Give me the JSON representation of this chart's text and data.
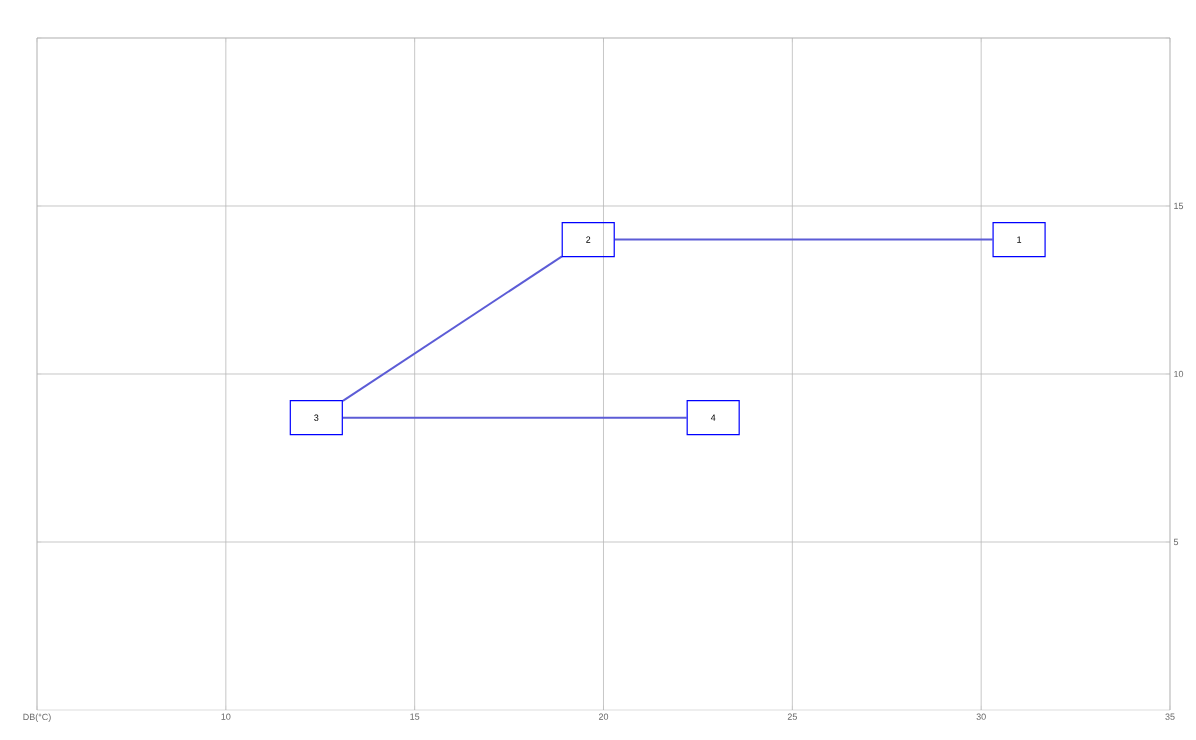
{
  "chart_data": {
    "type": "line",
    "series": [
      {
        "color": "#5c5cd6",
        "x": [
          30.3,
          20.3
        ],
        "values": [
          14.0,
          14.0
        ]
      },
      {
        "color": "#5c5cd6",
        "x": [
          18.9,
          13.1
        ],
        "values": [
          13.5,
          9.2
        ]
      },
      {
        "color": "#5c5cd6",
        "x": [
          13.1,
          22.2
        ],
        "values": [
          8.7,
          8.7
        ]
      }
    ],
    "xlim": [
      5,
      35
    ],
    "ylim": [
      0,
      20
    ],
    "xticks": [
      {
        "value": 5,
        "label": "DB(°C)"
      },
      10,
      15,
      20,
      25,
      30,
      35
    ],
    "yticks": [
      5,
      10,
      15,
      {
        "value": 20,
        "label": null
      }
    ],
    "grid": true,
    "marker": "none",
    "line_style": "solid",
    "annotations": [
      {
        "text": "1",
        "x": 30.3,
        "y": 14.0
      },
      {
        "text": "2",
        "x": 20.3,
        "y": 14.0
      },
      {
        "text": "3",
        "x": 13.1,
        "y": 8.7
      },
      {
        "text": "4",
        "x": 22.2,
        "y": 8.7
      }
    ]
  }
}
